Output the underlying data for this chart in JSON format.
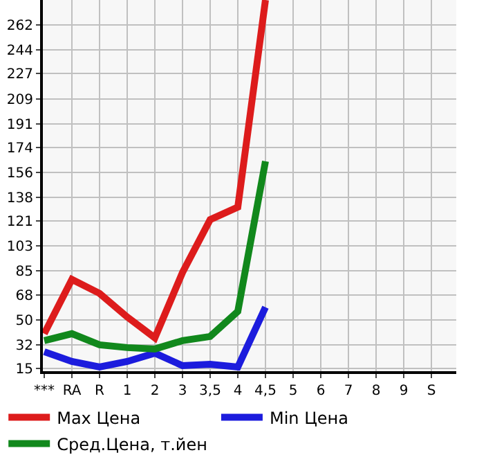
{
  "chart_data": {
    "type": "line",
    "categories": [
      "***",
      "RA",
      "R",
      "1",
      "2",
      "3",
      "3,5",
      "4",
      "4,5",
      "5",
      "6",
      "7",
      "8",
      "9",
      "S"
    ],
    "series": [
      {
        "name": "Max Цена",
        "color": "#dd1c1c",
        "values": [
          40,
          79,
          69,
          52,
          37,
          84,
          122,
          131,
          280,
          null,
          null,
          null,
          null,
          null,
          null
        ]
      },
      {
        "name": "Min Цена",
        "color": "#1c1cdd",
        "values": [
          27,
          20,
          16,
          20,
          26,
          17,
          18,
          16,
          59,
          null,
          null,
          null,
          null,
          null,
          null
        ]
      },
      {
        "name": "Сред.Цена, т.йен",
        "color": "#11881c",
        "values": [
          35,
          40,
          32,
          30,
          29,
          35,
          38,
          56,
          164,
          null,
          null,
          null,
          null,
          null,
          null
        ]
      }
    ],
    "ylim": [
      13,
      280
    ],
    "yticks": [
      15,
      32,
      50,
      68,
      85,
      103,
      121,
      138,
      156,
      174,
      191,
      209,
      227,
      244,
      262
    ],
    "grid": true,
    "legend": "bottom",
    "marker": "none",
    "line_style": "solid"
  }
}
